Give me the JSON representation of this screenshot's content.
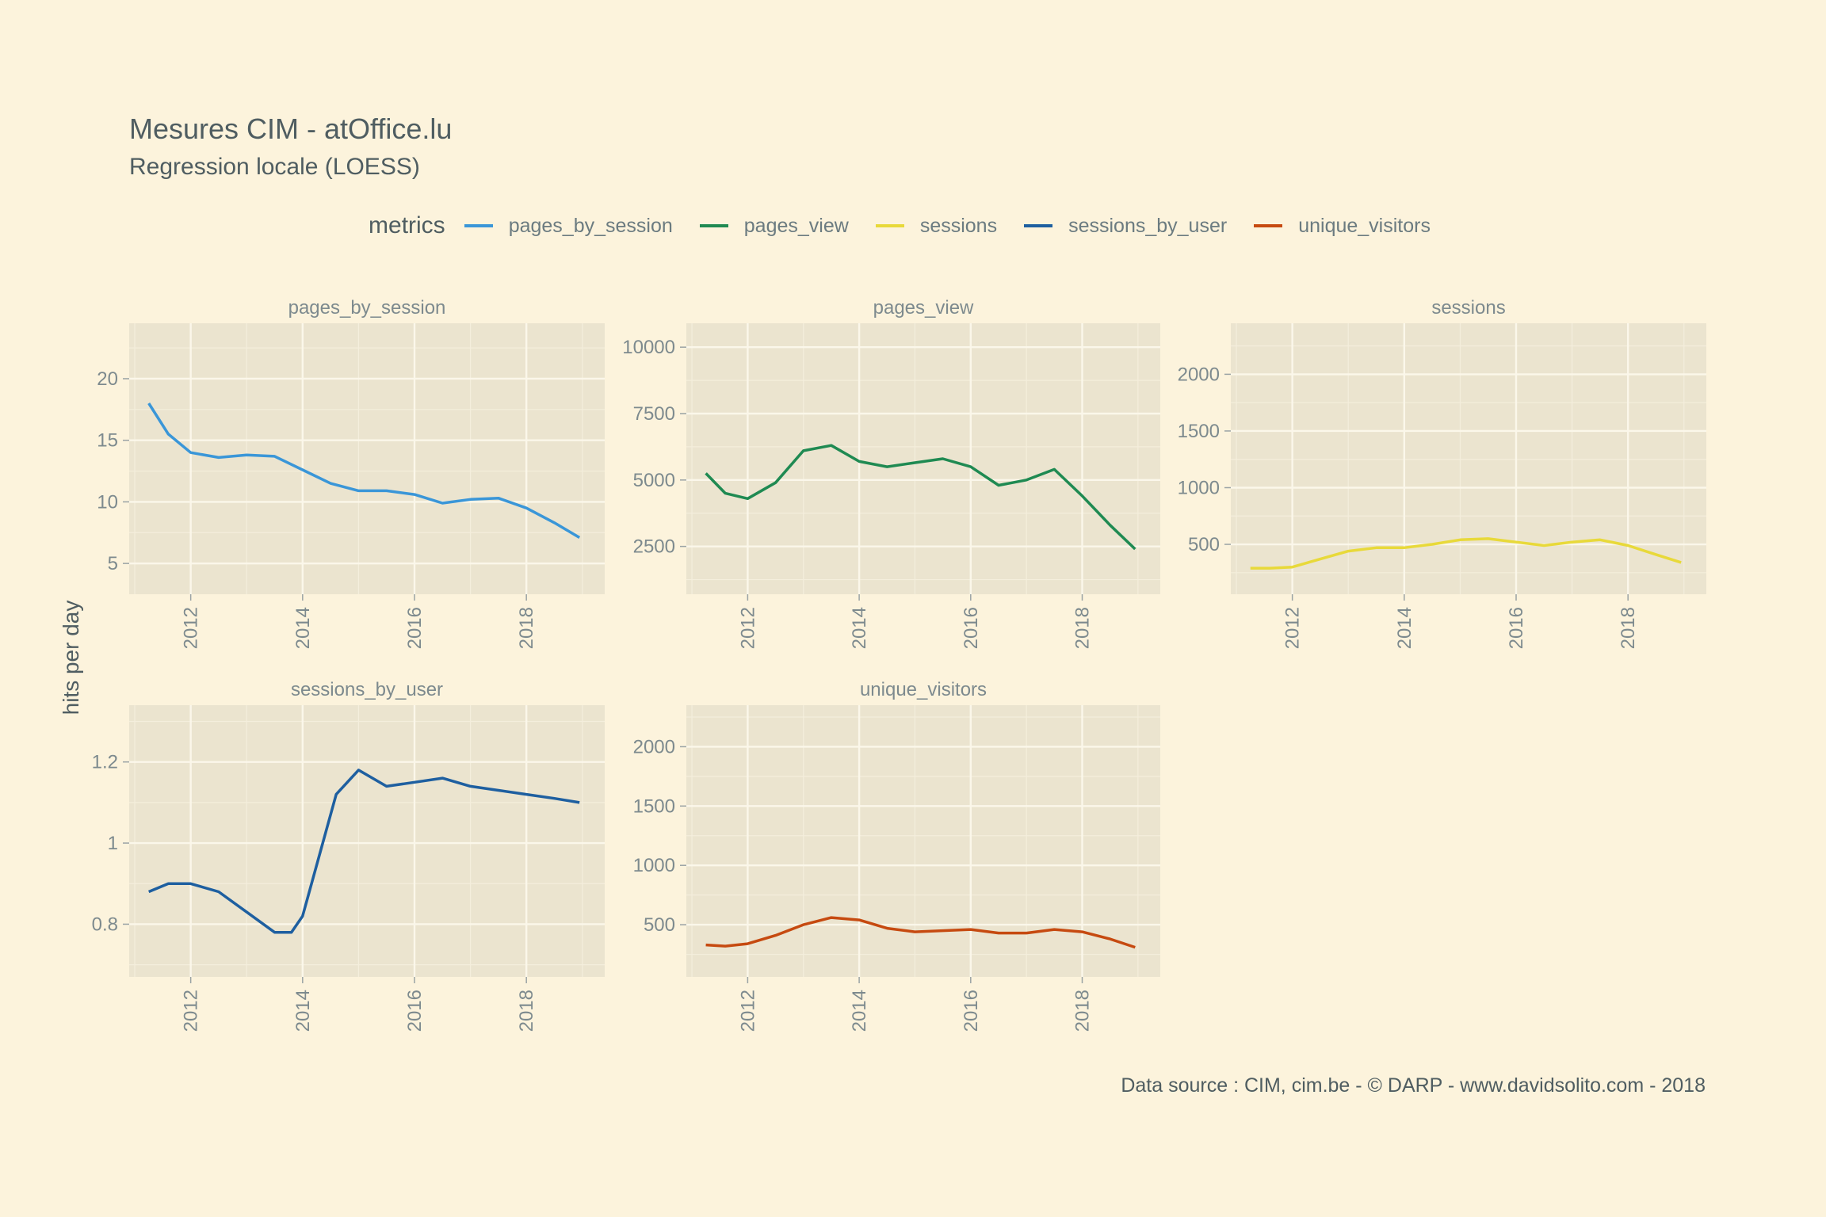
{
  "title": "Mesures CIM - atOffice.lu",
  "subtitle": "Regression locale (LOESS)",
  "ylabel": "hits per day",
  "caption": "Data source : CIM, cim.be - © DARP - www.davidsolito.com - 2018",
  "legend": {
    "title": "metrics",
    "items": [
      {
        "label": "pages_by_session",
        "color": "#3a96d8"
      },
      {
        "label": "pages_view",
        "color": "#1f8a52"
      },
      {
        "label": "sessions",
        "color": "#e8d93a"
      },
      {
        "label": "sessions_by_user",
        "color": "#1e5fa0"
      },
      {
        "label": "unique_visitors",
        "color": "#c64a10"
      }
    ]
  },
  "chart_data": [
    {
      "type": "line",
      "panel": "pages_by_session",
      "color": "#3a96d8",
      "x_ticks": [
        "2012",
        "2014",
        "2016",
        "2018"
      ],
      "y_ticks": [
        5,
        10,
        15,
        20
      ],
      "ylim": [
        2.5,
        24.5
      ],
      "xlim": [
        2010.9,
        2019.4
      ],
      "series": [
        {
          "name": "pages_by_session",
          "x": [
            2011.25,
            2011.6,
            2012.0,
            2012.5,
            2013.0,
            2013.5,
            2014.0,
            2014.5,
            2015.0,
            2015.5,
            2016.0,
            2016.5,
            2017.0,
            2017.5,
            2018.0,
            2018.5,
            2018.95
          ],
          "values": [
            18.0,
            15.5,
            14.0,
            13.6,
            13.8,
            13.7,
            12.6,
            11.5,
            10.9,
            10.9,
            10.6,
            9.9,
            10.2,
            10.3,
            9.5,
            8.3,
            7.1
          ]
        }
      ]
    },
    {
      "type": "line",
      "panel": "pages_view",
      "color": "#1f8a52",
      "x_ticks": [
        "2012",
        "2014",
        "2016",
        "2018"
      ],
      "y_ticks": [
        2500,
        5000,
        7500,
        10000
      ],
      "ylim": [
        700,
        10900
      ],
      "xlim": [
        2010.9,
        2019.4
      ],
      "series": [
        {
          "name": "pages_view",
          "x": [
            2011.25,
            2011.6,
            2012.0,
            2012.5,
            2013.0,
            2013.5,
            2014.0,
            2014.5,
            2015.0,
            2015.5,
            2016.0,
            2016.5,
            2017.0,
            2017.5,
            2018.0,
            2018.5,
            2018.95
          ],
          "values": [
            5250,
            4500,
            4300,
            4900,
            6100,
            6300,
            5700,
            5500,
            5650,
            5800,
            5500,
            4800,
            5000,
            5400,
            4400,
            3300,
            2400
          ]
        }
      ]
    },
    {
      "type": "line",
      "panel": "sessions",
      "color": "#e8d93a",
      "x_ticks": [
        "2012",
        "2014",
        "2016",
        "2018"
      ],
      "y_ticks": [
        500,
        1000,
        1500,
        2000
      ],
      "ylim": [
        60,
        2450
      ],
      "xlim": [
        2010.9,
        2019.4
      ],
      "series": [
        {
          "name": "sessions",
          "x": [
            2011.25,
            2011.6,
            2012.0,
            2012.5,
            2013.0,
            2013.5,
            2014.0,
            2014.5,
            2015.0,
            2015.5,
            2016.0,
            2016.5,
            2017.0,
            2017.5,
            2018.0,
            2018.5,
            2018.95
          ],
          "values": [
            290,
            290,
            300,
            370,
            440,
            470,
            470,
            500,
            540,
            550,
            520,
            490,
            520,
            540,
            490,
            410,
            340
          ]
        }
      ]
    },
    {
      "type": "line",
      "panel": "sessions_by_user",
      "color": "#1e5fa0",
      "x_ticks": [
        "2012",
        "2014",
        "2016",
        "2018"
      ],
      "y_ticks": [
        0.8,
        1.0,
        1.2
      ],
      "ylim": [
        0.67,
        1.34
      ],
      "xlim": [
        2010.9,
        2019.4
      ],
      "series": [
        {
          "name": "sessions_by_user",
          "x": [
            2011.25,
            2011.6,
            2012.0,
            2012.5,
            2013.0,
            2013.5,
            2013.8,
            2014.0,
            2014.3,
            2014.6,
            2015.0,
            2015.5,
            2016.0,
            2016.5,
            2017.0,
            2017.5,
            2018.0,
            2018.5,
            2018.95
          ],
          "values": [
            0.88,
            0.9,
            0.9,
            0.88,
            0.83,
            0.78,
            0.78,
            0.82,
            0.97,
            1.12,
            1.18,
            1.14,
            1.15,
            1.16,
            1.14,
            1.13,
            1.12,
            1.11,
            1.1
          ]
        }
      ]
    },
    {
      "type": "line",
      "panel": "unique_visitors",
      "color": "#c64a10",
      "x_ticks": [
        "2012",
        "2014",
        "2016",
        "2018"
      ],
      "y_ticks": [
        500,
        1000,
        1500,
        2000
      ],
      "ylim": [
        60,
        2350
      ],
      "xlim": [
        2010.9,
        2019.4
      ],
      "series": [
        {
          "name": "unique_visitors",
          "x": [
            2011.25,
            2011.6,
            2012.0,
            2012.5,
            2013.0,
            2013.5,
            2014.0,
            2014.5,
            2015.0,
            2015.5,
            2016.0,
            2016.5,
            2017.0,
            2017.5,
            2018.0,
            2018.5,
            2018.95
          ],
          "values": [
            330,
            320,
            340,
            410,
            500,
            560,
            540,
            470,
            440,
            450,
            460,
            430,
            430,
            460,
            440,
            380,
            310
          ]
        }
      ]
    }
  ]
}
